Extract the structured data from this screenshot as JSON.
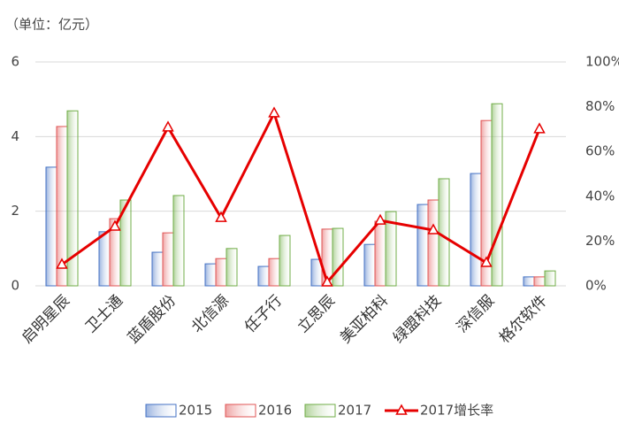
{
  "chart_data": {
    "type": "bar-line",
    "subtitle": "（单位：亿元）",
    "categories": [
      "启明星辰",
      "卫士通",
      "蓝盾股份",
      "北信源",
      "任子行",
      "立思辰",
      "美亚柏科",
      "绿盟科技",
      "深信服",
      "格尔软件"
    ],
    "series": [
      {
        "name": "2015",
        "color": "#4472c4",
        "type": "bar",
        "values": [
          3.18,
          1.45,
          0.9,
          0.59,
          0.52,
          0.71,
          1.11,
          2.18,
          3.01,
          0.24
        ]
      },
      {
        "name": "2016",
        "color": "#e05555",
        "type": "bar",
        "values": [
          4.27,
          1.8,
          1.42,
          0.73,
          0.73,
          1.52,
          1.73,
          2.3,
          4.43,
          0.24
        ]
      },
      {
        "name": "2017",
        "color": "#70ad47",
        "type": "bar",
        "values": [
          4.69,
          2.3,
          2.42,
          1.0,
          1.35,
          1.54,
          1.99,
          2.87,
          4.88,
          0.4
        ]
      },
      {
        "name": "2017增长率",
        "color": "#e60000",
        "type": "line",
        "axis": "y2",
        "values": [
          9.5,
          26.5,
          70.8,
          30.4,
          77.1,
          1.6,
          29.2,
          24.9,
          10.3,
          70
        ]
      }
    ],
    "ylim": [
      0,
      6
    ],
    "yticks": [
      0,
      2,
      4,
      6
    ],
    "y2lim": [
      0,
      100
    ],
    "y2ticks": [
      {
        "value": 0,
        "label": "0%"
      },
      {
        "value": 20,
        "label": "20%"
      },
      {
        "value": 40,
        "label": "40%"
      },
      {
        "value": 60,
        "label": "60%"
      },
      {
        "value": 80,
        "label": "80%"
      },
      {
        "value": 100,
        "label": "100%"
      }
    ],
    "grid": true,
    "legend": "bottom"
  }
}
